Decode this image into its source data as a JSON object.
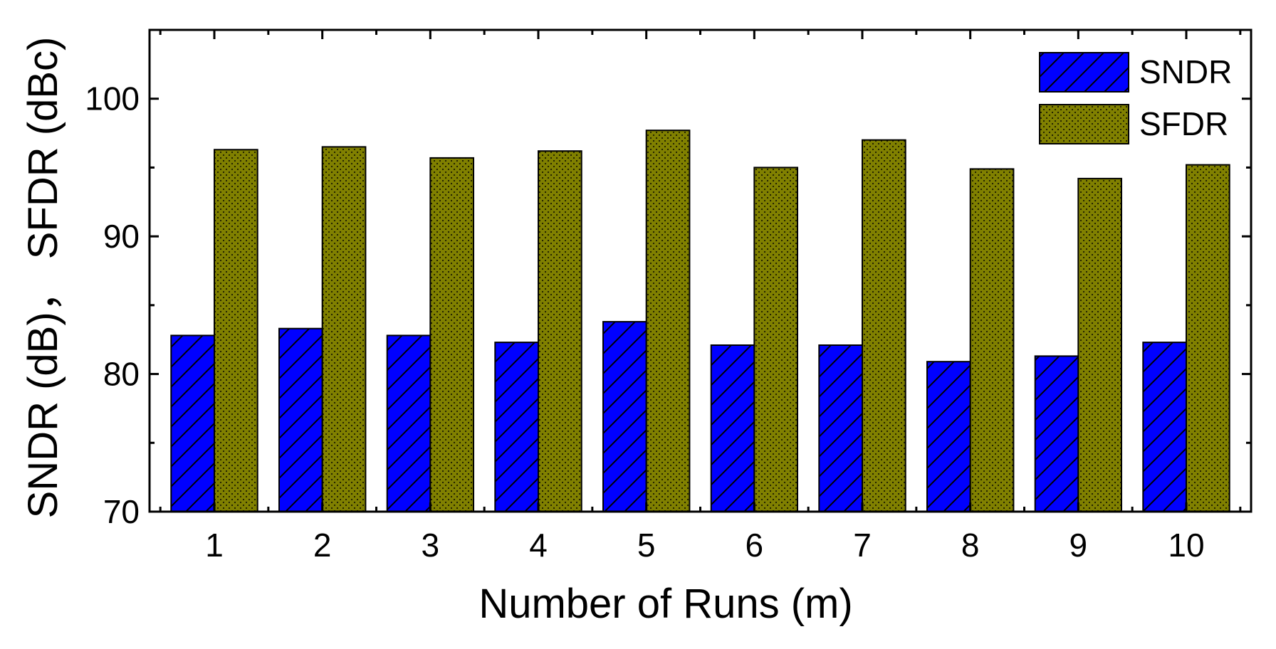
{
  "chart_data": {
    "type": "bar",
    "title": "",
    "xlabel": "Number of Runs (m)",
    "ylabel": "SNDR (dB)， SFDR (dBc)",
    "categories": [
      "1",
      "2",
      "3",
      "4",
      "5",
      "6",
      "7",
      "8",
      "9",
      "10"
    ],
    "series": [
      {
        "name": "SNDR",
        "values": [
          82.8,
          83.3,
          82.8,
          82.3,
          83.8,
          82.1,
          82.1,
          80.9,
          81.3,
          82.3
        ],
        "color": "#0000ff",
        "pattern": "diagonal-hatch"
      },
      {
        "name": "SFDR",
        "values": [
          96.3,
          96.5,
          95.7,
          96.2,
          97.7,
          95.0,
          97.0,
          94.9,
          94.2,
          95.2
        ],
        "color": "#808000",
        "pattern": "dots"
      }
    ],
    "ylim": [
      70,
      105
    ],
    "yticks": [
      70,
      80,
      90,
      100
    ],
    "grid": false,
    "legend_position": "top-right"
  }
}
